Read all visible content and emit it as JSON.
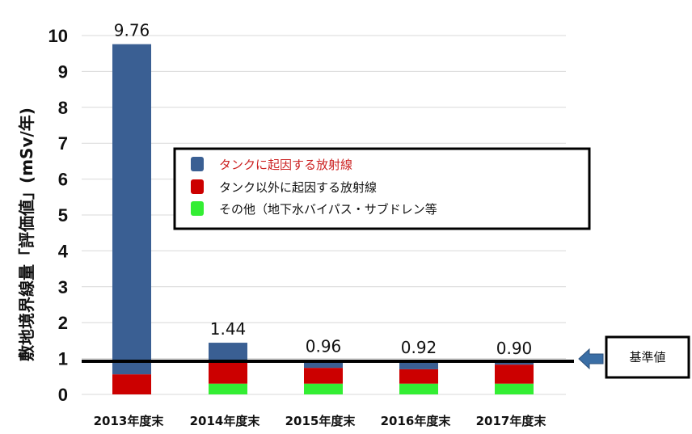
{
  "chart_data": {
    "type": "bar",
    "stacked": true,
    "categories": [
      "2013年度末",
      "2014年度末",
      "2015年度末",
      "2016年度末",
      "2017年度末"
    ],
    "series": [
      {
        "name": "その他（地下水バイパス・サブドレン等",
        "color": "#33ee33",
        "values": [
          0.0,
          0.3,
          0.3,
          0.3,
          0.3
        ]
      },
      {
        "name": "タンク以外に起因する放射線",
        "color": "#cc0000",
        "values": [
          0.56,
          0.6,
          0.44,
          0.4,
          0.53
        ]
      },
      {
        "name": "タンクに起因する放射線",
        "color": "#3a5f93",
        "values": [
          9.2,
          0.54,
          0.22,
          0.22,
          0.07
        ]
      }
    ],
    "totals": [
      9.76,
      1.44,
      0.96,
      0.92,
      0.9
    ],
    "total_labels": [
      "9.76",
      "1.44",
      "0.96",
      "0.92",
      "0.90"
    ],
    "ylabel": "敷地境界線量「評価値」(mSv/年)",
    "ylim": [
      0,
      10
    ],
    "yticks": [
      0,
      1,
      2,
      3,
      4,
      5,
      6,
      7,
      8,
      9,
      10
    ],
    "grid": true,
    "legend": {
      "placement": "center-right",
      "entries": [
        {
          "label": "タンクに起因する放射線",
          "swatch": "#3a5f93",
          "text_color": "#cc2222"
        },
        {
          "label": "タンク以外に起因する放射線",
          "swatch": "#cc0000",
          "text_color": "#111111"
        },
        {
          "label": "その他（地下水バイパス・サブドレン等",
          "swatch": "#33ee33",
          "text_color": "#111111"
        }
      ]
    },
    "reference_line": {
      "value": 0.9,
      "label": "基準値",
      "color": "#000000",
      "arrow_color": "#3a6ea5"
    }
  }
}
